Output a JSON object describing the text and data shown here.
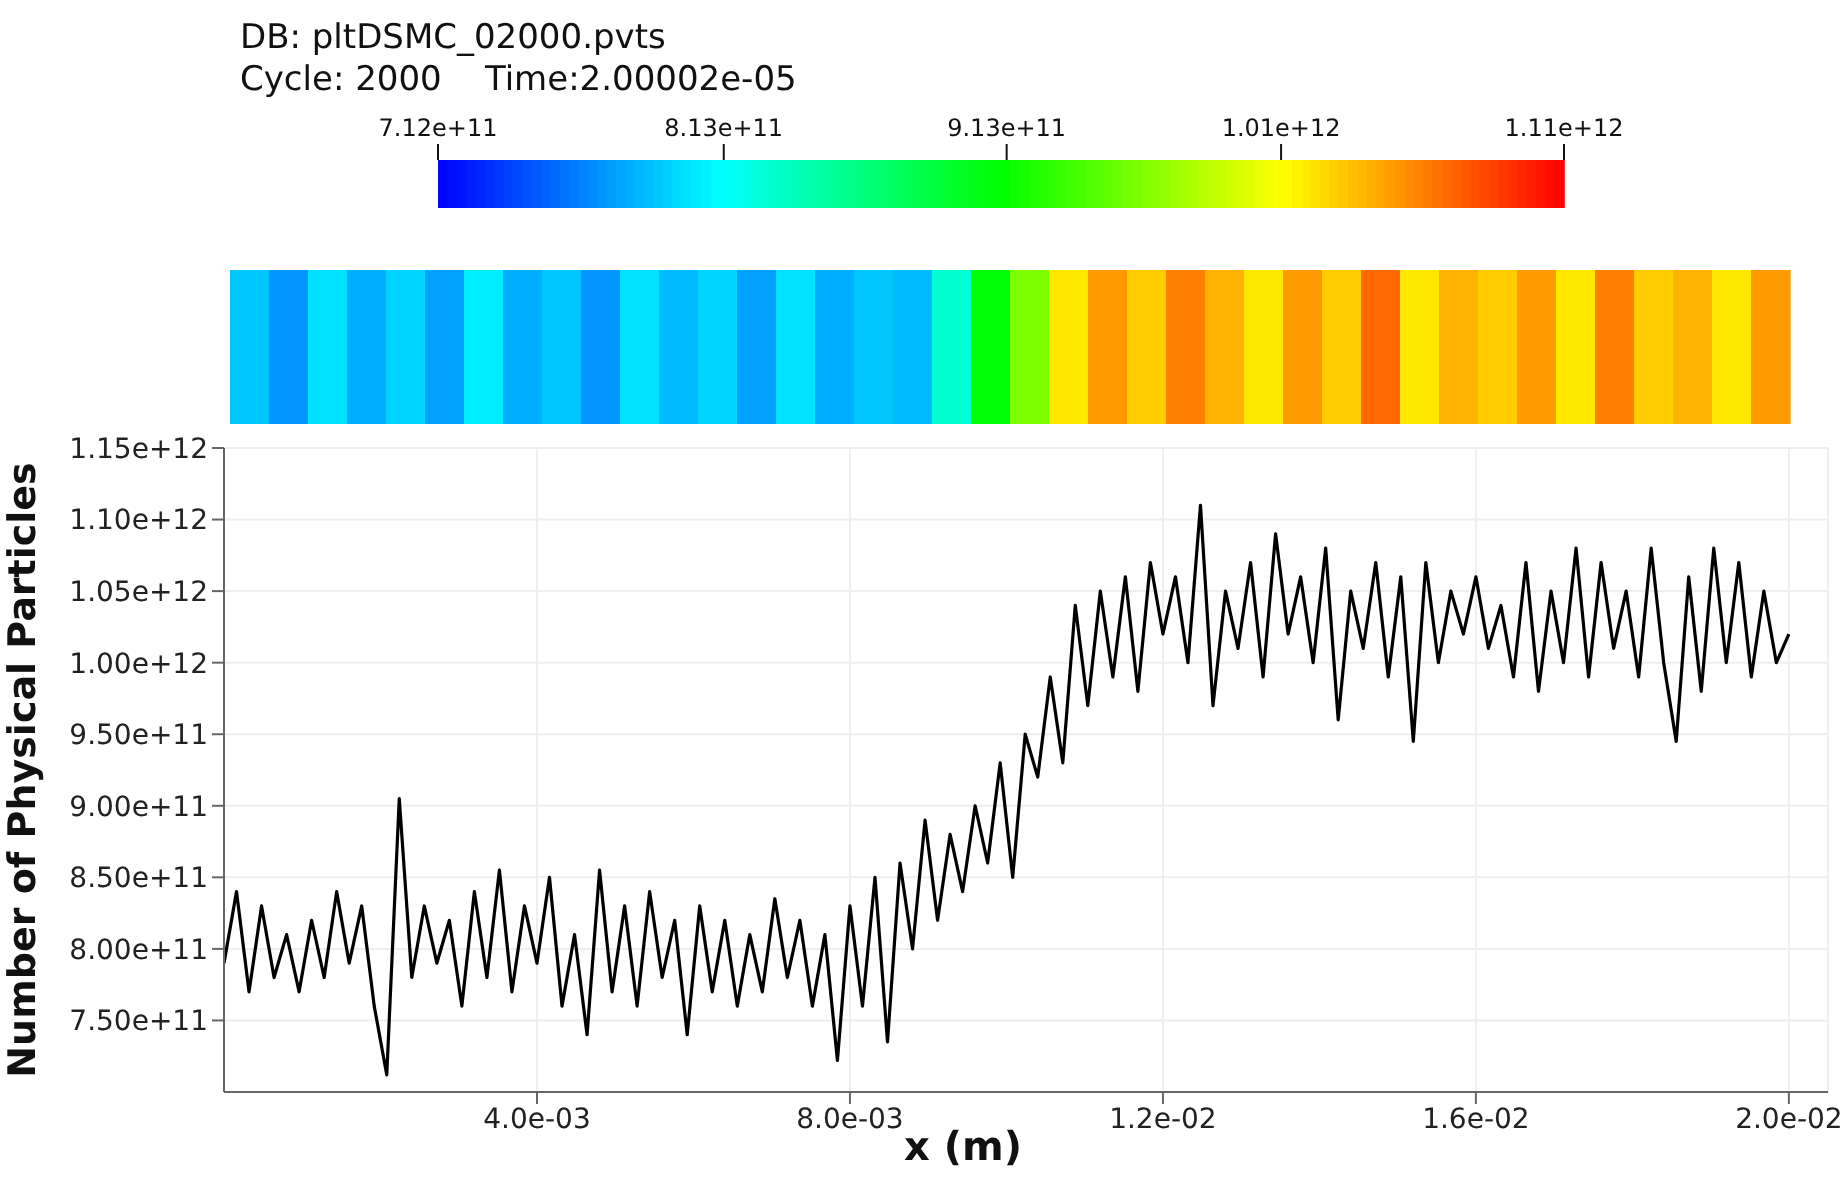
{
  "chart_data": [
    {
      "type": "heatmap",
      "title": "DB: pltDSMC_02000.pvts",
      "subtitle": "Cycle: 2000    Time:2.00002e-05",
      "categories": [
        null,
        null,
        null,
        null,
        null,
        null,
        null,
        null,
        null,
        null,
        null,
        null,
        null,
        null,
        null,
        null,
        null,
        null,
        null,
        null,
        null,
        null,
        null,
        null,
        null,
        null,
        null,
        null,
        null,
        null,
        null,
        null,
        null,
        null,
        null,
        null,
        null,
        null,
        null,
        null
      ],
      "y_categories": [
        null
      ],
      "cells": [
        [
          790000000000.0,
          770000000000.0,
          800000000000.0,
          780000000000.0,
          795000000000.0,
          775000000000.0,
          805000000000.0,
          780000000000.0,
          790000000000.0,
          770000000000.0,
          800000000000.0,
          785000000000.0,
          795000000000.0,
          775000000000.0,
          800000000000.0,
          780000000000.0,
          790000000000.0,
          785000000000.0,
          830000000000.0,
          910000000000.0,
          960000000000.0,
          1020000000000.0,
          1050000000000.0,
          1030000000000.0,
          1060000000000.0,
          1040000000000.0,
          1020000000000.0,
          1050000000000.0,
          1030000000000.0,
          1070000000000.0,
          1020000000000.0,
          1040000000000.0,
          1030000000000.0,
          1050000000000.0,
          1020000000000.0,
          1060000000000.0,
          1030000000000.0,
          1040000000000.0,
          1020000000000.0,
          1050000000000.0
        ]
      ],
      "clim": [
        712000000000.0,
        1110000000000.0
      ],
      "cticks": [
        {
          "value": 712000000000.0,
          "label": "7.12e+11"
        },
        {
          "value": 813000000000.0,
          "label": "8.13e+11"
        },
        {
          "value": 913000000000.0,
          "label": "9.13e+11"
        },
        {
          "value": 1010000000000.0,
          "label": "1.01e+12"
        },
        {
          "value": 1110000000000.0,
          "label": "1.11e+12"
        }
      ]
    },
    {
      "type": "line",
      "xlabel": "x (m)",
      "ylabel": "Number of Physical Particles",
      "grid": true,
      "marker": "none",
      "line_style": "solid",
      "xlim": [
        0,
        0.0205
      ],
      "ylim": [
        700000000000.0,
        1150000000000.0
      ],
      "xticks": [
        {
          "value": 0.004,
          "label": "4.0e-03"
        },
        {
          "value": 0.008,
          "label": "8.0e-03"
        },
        {
          "value": 0.012,
          "label": "1.2e-02"
        },
        {
          "value": 0.016,
          "label": "1.6e-02"
        },
        {
          "value": 0.02,
          "label": "2.0e-02"
        }
      ],
      "yticks": [
        {
          "value": 750000000000.0,
          "label": "7.50e+11"
        },
        {
          "value": 800000000000.0,
          "label": "8.00e+11"
        },
        {
          "value": 850000000000.0,
          "label": "8.50e+11"
        },
        {
          "value": 900000000000.0,
          "label": "9.00e+11"
        },
        {
          "value": 950000000000.0,
          "label": "9.50e+11"
        },
        {
          "value": 1000000000000.0,
          "label": "1.00e+12"
        },
        {
          "value": 1050000000000.0,
          "label": "1.05e+12"
        },
        {
          "value": 1100000000000.0,
          "label": "1.10e+12"
        },
        {
          "value": 1150000000000.0,
          "label": "1.15e+12"
        }
      ],
      "series": [
        {
          "color": "#000000",
          "x": [
            0,
            0.00016,
            0.00032,
            0.00048,
            0.00064,
            0.0008,
            0.00096,
            0.00112,
            0.00128,
            0.00144,
            0.0016,
            0.00176,
            0.00192,
            0.00208,
            0.00224,
            0.0024,
            0.00256,
            0.00272,
            0.00288,
            0.00304,
            0.0032,
            0.00336,
            0.00352,
            0.00368,
            0.00384,
            0.004,
            0.00416,
            0.00432,
            0.00448,
            0.00464,
            0.0048,
            0.00496,
            0.00512,
            0.00528,
            0.00544,
            0.0056,
            0.00576,
            0.00592,
            0.00608,
            0.00624,
            0.0064,
            0.00656,
            0.00672,
            0.00688,
            0.00704,
            0.0072,
            0.00736,
            0.00752,
            0.00768,
            0.00784,
            0.008,
            0.00816,
            0.00832,
            0.00848,
            0.00864,
            0.0088,
            0.00896,
            0.00912,
            0.00928,
            0.00944,
            0.0096,
            0.00976,
            0.00992,
            0.01008,
            0.01024,
            0.0104,
            0.01056,
            0.01072,
            0.01088,
            0.01104,
            0.0112,
            0.01136,
            0.01152,
            0.01168,
            0.01184,
            0.012,
            0.01216,
            0.01232,
            0.01248,
            0.01264,
            0.0128,
            0.01296,
            0.01312,
            0.01328,
            0.01344,
            0.0136,
            0.01376,
            0.01392,
            0.01408,
            0.01424,
            0.0144,
            0.01456,
            0.01472,
            0.01488,
            0.01504,
            0.0152,
            0.01536,
            0.01552,
            0.01568,
            0.01584,
            0.016,
            0.01616,
            0.01632,
            0.01648,
            0.01664,
            0.0168,
            0.01696,
            0.01712,
            0.01728,
            0.01744,
            0.0176,
            0.01776,
            0.01792,
            0.01808,
            0.01824,
            0.0184,
            0.01856,
            0.01872,
            0.01888,
            0.01904,
            0.0192,
            0.01936,
            0.01952,
            0.01968,
            0.01984,
            0.02
          ],
          "values": [
            790000000000.0,
            840000000000.0,
            770000000000.0,
            830000000000.0,
            780000000000.0,
            810000000000.0,
            770000000000.0,
            820000000000.0,
            780000000000.0,
            840000000000.0,
            790000000000.0,
            830000000000.0,
            760000000000.0,
            712000000000.0,
            905000000000.0,
            780000000000.0,
            830000000000.0,
            790000000000.0,
            820000000000.0,
            760000000000.0,
            840000000000.0,
            780000000000.0,
            855000000000.0,
            770000000000.0,
            830000000000.0,
            790000000000.0,
            850000000000.0,
            760000000000.0,
            810000000000.0,
            740000000000.0,
            855000000000.0,
            770000000000.0,
            830000000000.0,
            760000000000.0,
            840000000000.0,
            780000000000.0,
            820000000000.0,
            740000000000.0,
            830000000000.0,
            770000000000.0,
            820000000000.0,
            760000000000.0,
            810000000000.0,
            770000000000.0,
            835000000000.0,
            780000000000.0,
            820000000000.0,
            760000000000.0,
            810000000000.0,
            722000000000.0,
            830000000000.0,
            760000000000.0,
            850000000000.0,
            735000000000.0,
            860000000000.0,
            800000000000.0,
            890000000000.0,
            820000000000.0,
            880000000000.0,
            840000000000.0,
            900000000000.0,
            860000000000.0,
            930000000000.0,
            850000000000.0,
            950000000000.0,
            920000000000.0,
            990000000000.0,
            930000000000.0,
            1040000000000.0,
            970000000000.0,
            1050000000000.0,
            990000000000.0,
            1060000000000.0,
            980000000000.0,
            1070000000000.0,
            1020000000000.0,
            1060000000000.0,
            1000000000000.0,
            1110000000000.0,
            970000000000.0,
            1050000000000.0,
            1010000000000.0,
            1070000000000.0,
            990000000000.0,
            1090000000000.0,
            1020000000000.0,
            1060000000000.0,
            1000000000000.0,
            1080000000000.0,
            960000000000.0,
            1050000000000.0,
            1010000000000.0,
            1070000000000.0,
            990000000000.0,
            1060000000000.0,
            945000000000.0,
            1070000000000.0,
            1000000000000.0,
            1050000000000.0,
            1020000000000.0,
            1060000000000.0,
            1010000000000.0,
            1040000000000.0,
            990000000000.0,
            1070000000000.0,
            980000000000.0,
            1050000000000.0,
            1000000000000.0,
            1080000000000.0,
            990000000000.0,
            1070000000000.0,
            1010000000000.0,
            1050000000000.0,
            990000000000.0,
            1080000000000.0,
            1000000000000.0,
            945000000000.0,
            1060000000000.0,
            980000000000.0,
            1080000000000.0,
            1000000000000.0,
            1070000000000.0,
            990000000000.0,
            1050000000000.0,
            1000000000000.0,
            1020000000000.0
          ]
        }
      ]
    }
  ]
}
